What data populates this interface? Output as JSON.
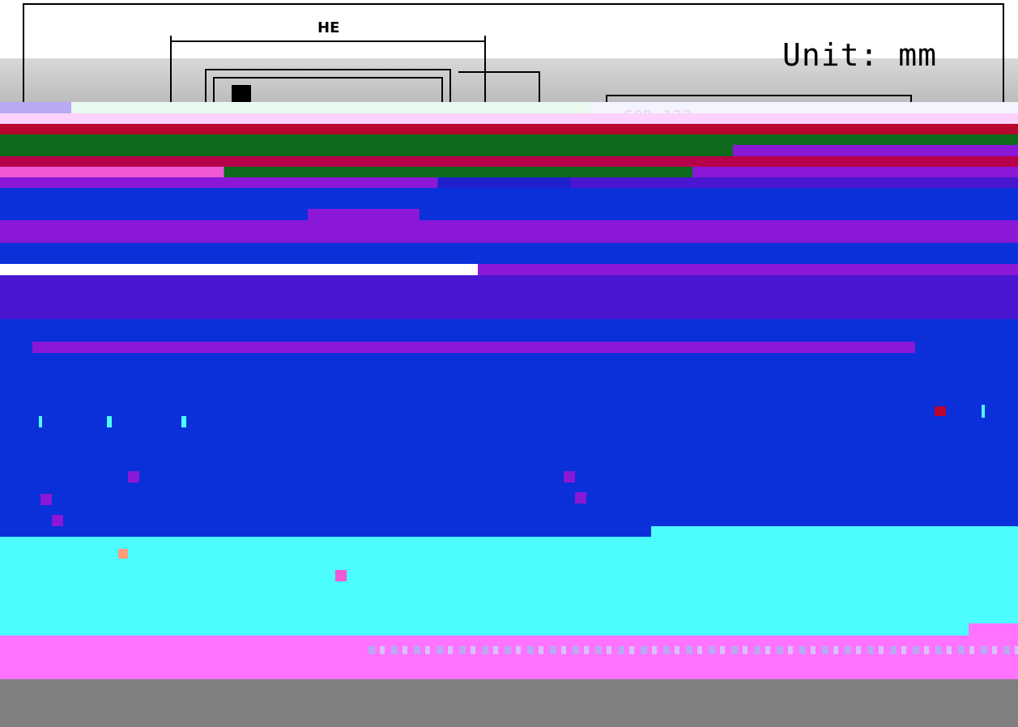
{
  "drawing": {
    "dimension_label": "HE",
    "unit_label": "Unit: mm",
    "package_label": "SOD-123"
  },
  "colors": {
    "blue": "#0b2fd9",
    "purple": "#8a18d6",
    "cyan": "#4bfdfd",
    "magenta": "#ff73ff",
    "gray": "#808080"
  }
}
